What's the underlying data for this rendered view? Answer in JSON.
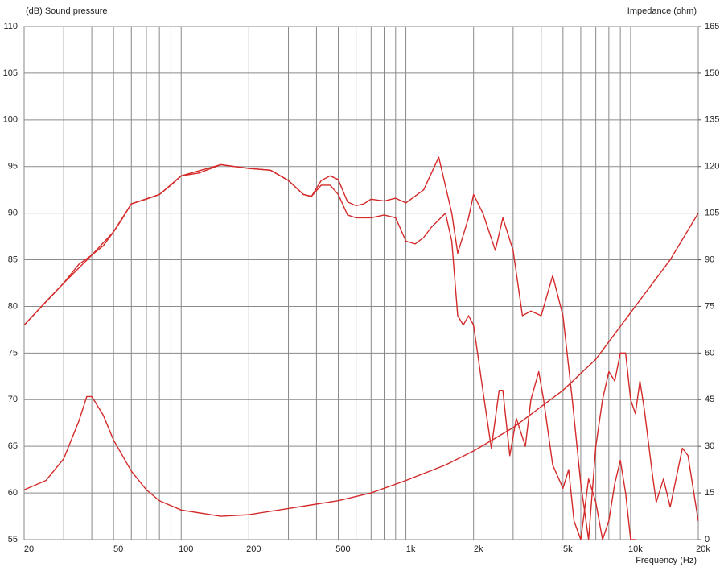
{
  "chart_data": {
    "type": "line",
    "y_label": "(dB)  Sound pressure",
    "y2_label": "Impedance  (ohm)",
    "x_label": "Frequency  (Hz)",
    "xscale": "log",
    "xlim": [
      20,
      20000
    ],
    "xticks": [
      20,
      50,
      100,
      200,
      500,
      {
        "value": 1000,
        "label": "1k"
      },
      {
        "value": 2000,
        "label": "2k"
      },
      {
        "value": 5000,
        "label": "5k"
      },
      {
        "value": 10000,
        "label": "10k"
      },
      {
        "value": 20000,
        "label": "20k"
      }
    ],
    "xminor": [
      30,
      40,
      60,
      70,
      80,
      90,
      300,
      400,
      600,
      700,
      800,
      900,
      3000,
      4000,
      6000,
      7000,
      8000,
      9000
    ],
    "ylim": [
      55,
      110
    ],
    "yticks": [
      55,
      60,
      65,
      70,
      75,
      80,
      85,
      90,
      95,
      100,
      105,
      110
    ],
    "y2lim": [
      0,
      165
    ],
    "y2ticks": [
      0,
      15,
      30,
      45,
      60,
      75,
      90,
      105,
      120,
      135,
      150,
      165
    ],
    "grid": true,
    "series": [
      {
        "color": "#d42a2a",
        "x": [
          20,
          25,
          30,
          35,
          40,
          45,
          50,
          55,
          60,
          70,
          80,
          90,
          100,
          120,
          150,
          200,
          250,
          300,
          350,
          380,
          420,
          460,
          500,
          550,
          600,
          650,
          700,
          800,
          900,
          1000,
          1200,
          1400,
          1600,
          1700,
          1900,
          2000,
          2200,
          2500,
          2700,
          3000,
          3300,
          3600,
          4000,
          4500,
          5000,
          5500,
          6000,
          6500,
          7000,
          7500,
          8000,
          8500,
          9000,
          9500,
          10000,
          10500,
          11000,
          11500,
          12500,
          13000,
          14000,
          15000,
          17000,
          18000,
          20000
        ],
        "values": [
          78,
          80.5,
          82.5,
          84.5,
          85.5,
          86.5,
          88,
          89.5,
          91,
          91.5,
          92,
          93,
          94,
          94.3,
          95.2,
          94.8,
          94.6,
          93.5,
          92,
          91.8,
          93.5,
          94,
          93.6,
          91.2,
          90.8,
          91,
          91.5,
          91.3,
          91.6,
          91.1,
          92.5,
          96,
          90,
          85.7,
          89.5,
          92,
          90,
          86,
          89.5,
          86,
          79,
          79.5,
          79,
          83.3,
          79,
          70,
          61,
          55,
          65,
          70,
          73,
          72,
          75,
          75,
          70,
          68.5,
          72,
          69,
          62,
          59,
          61.5,
          58.5,
          64.8,
          64,
          57
        ]
      },
      {
        "color": "#d42a2a",
        "x": [
          20,
          30,
          40,
          50,
          60,
          80,
          100,
          150,
          200,
          250,
          300,
          350,
          380,
          420,
          460,
          500,
          550,
          600,
          700,
          800,
          900,
          1000,
          1100,
          1200,
          1300,
          1500,
          1600,
          1700,
          1800,
          1900,
          2000,
          2200,
          2400,
          2600,
          2700,
          2900,
          3100,
          3400,
          3600,
          3900,
          4100,
          4500,
          5000,
          5300,
          5600,
          6000,
          6500,
          7000,
          7500,
          8000,
          8500,
          9000,
          9500,
          10000,
          10500
        ],
        "values": [
          78,
          82.5,
          85.5,
          88,
          91,
          92,
          94,
          95.2,
          94.8,
          94.6,
          93.5,
          92,
          91.8,
          93,
          93,
          92,
          89.8,
          89.5,
          89.5,
          89.8,
          89.5,
          87,
          86.7,
          87.4,
          88.5,
          90,
          87,
          79,
          78,
          79,
          78,
          71,
          64.8,
          71,
          71,
          64,
          68,
          65,
          70,
          73,
          70,
          63,
          60.5,
          62.5,
          57,
          55,
          61.5,
          59,
          55,
          57,
          61,
          63.5,
          60,
          55,
          55
        ]
      },
      {
        "color": "#d42a2a",
        "axis": "y2",
        "x": [
          20,
          25,
          30,
          35,
          38,
          40,
          45,
          50,
          60,
          70,
          80,
          100,
          150,
          200,
          300,
          500,
          700,
          1000,
          1500,
          2000,
          3000,
          5000,
          7000,
          10000,
          15000,
          20000
        ],
        "values": [
          16,
          19,
          26,
          38,
          46,
          46,
          40,
          32,
          22,
          16,
          12.5,
          9.5,
          7.5,
          8,
          10,
          12.5,
          15,
          19,
          24,
          28.5,
          36,
          48,
          58,
          73,
          90,
          105
        ]
      }
    ]
  }
}
